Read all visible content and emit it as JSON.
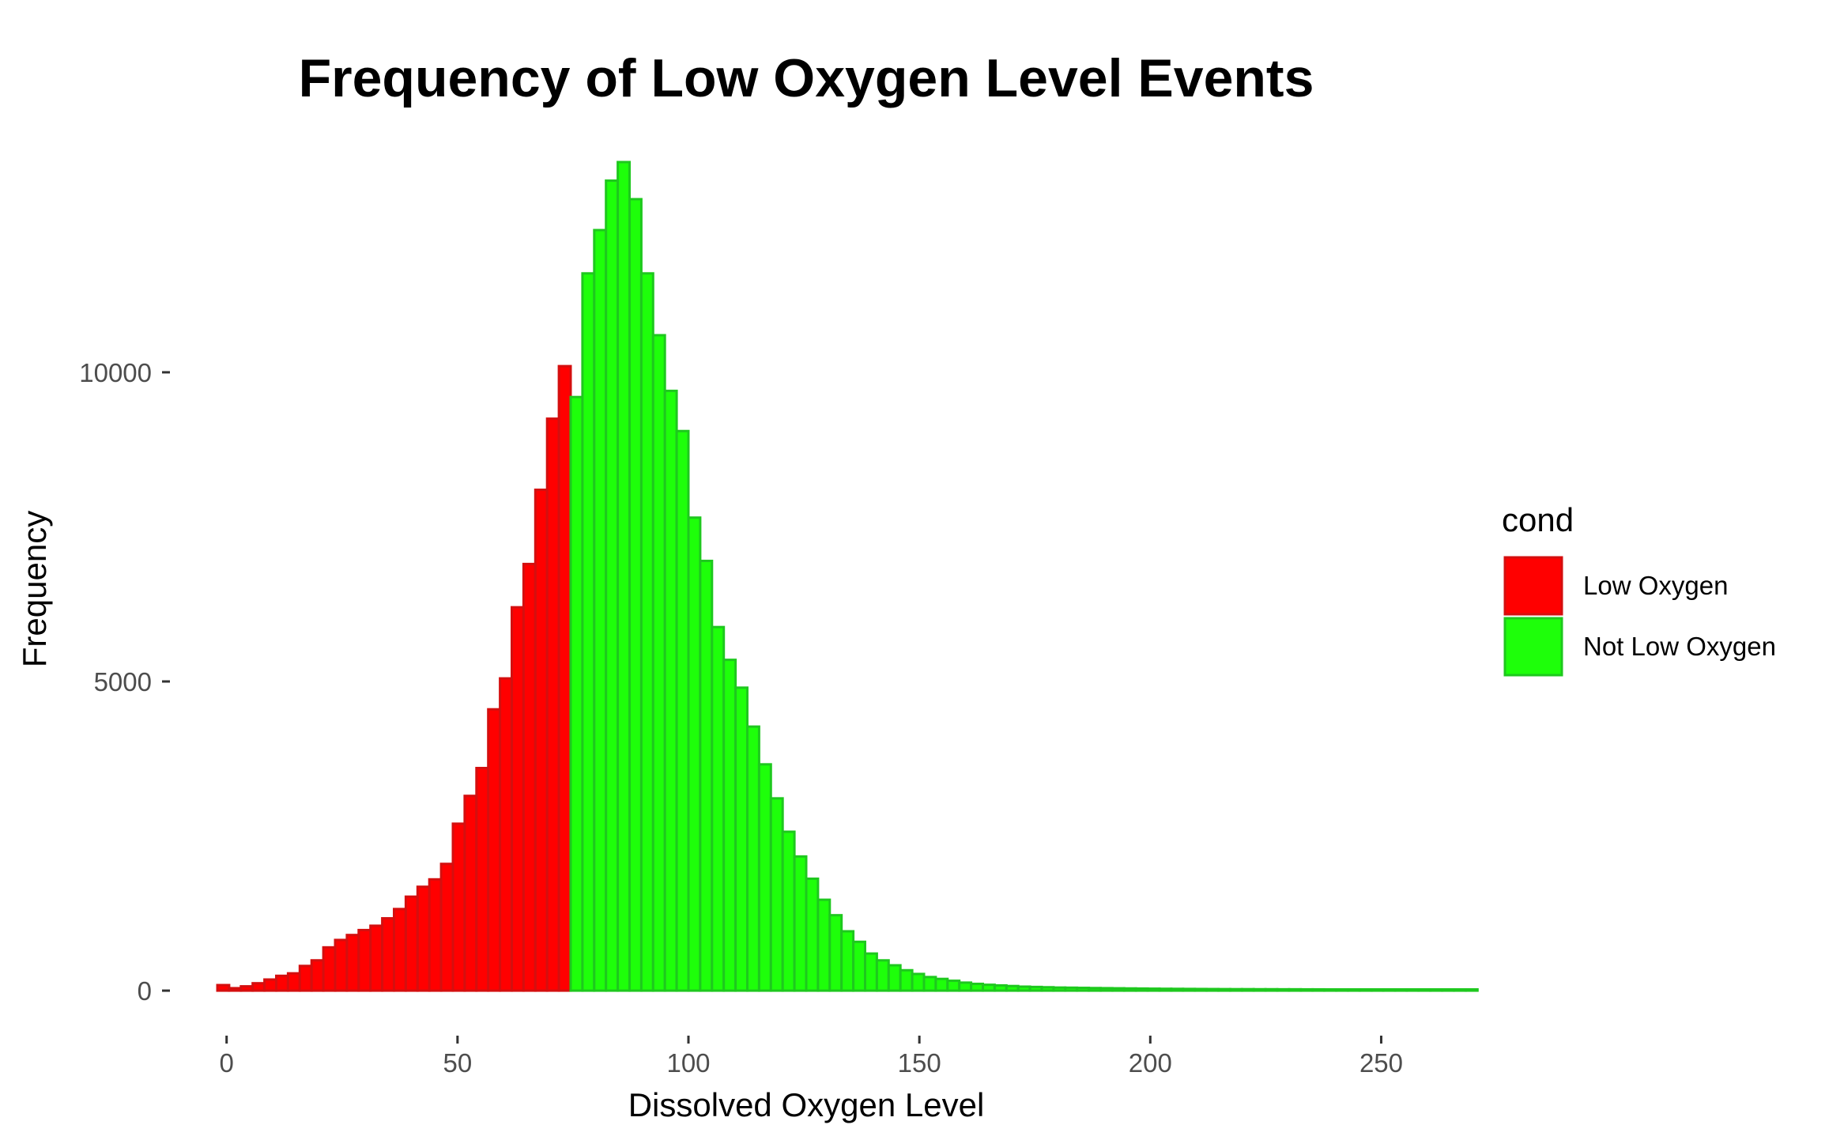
{
  "chart_data": {
    "type": "bar",
    "title": "Frequency of Low Oxygen Level Events",
    "xlabel": "Dissolved Oxygen Level",
    "ylabel": "Frequency",
    "xlim": [
      -2,
      253
    ],
    "ylim": [
      -600,
      13400
    ],
    "x_ticks": [
      0,
      50,
      100,
      150,
      200,
      250
    ],
    "x_tick_labels": [
      "0",
      "50",
      "100",
      "150",
      "200",
      "250"
    ],
    "y_ticks": [
      0,
      5000,
      10000
    ],
    "y_tick_labels": [
      "0",
      "5000",
      "10000"
    ],
    "bin_width": 2.55,
    "bin_start": -2,
    "grid": false,
    "legend_position": "right",
    "legend_title": "cond",
    "series": [
      {
        "name": "Low Oxygen",
        "fill": "#ff0000",
        "stroke": "#d40f0f",
        "values": [
          90,
          40,
          70,
          120,
          180,
          240,
          280,
          400,
          490,
          700,
          820,
          900,
          980,
          1050,
          1170,
          1320,
          1520,
          1680,
          1800,
          2050,
          2700,
          3150,
          3600,
          4550,
          5050,
          6200,
          6900,
          8100,
          9250,
          10100
        ]
      },
      {
        "name": "Not Low Oxygen",
        "fill": "#1eff0a",
        "stroke": "#1ec81e",
        "values": [
          9600,
          11600,
          12300,
          13100,
          13400,
          12800,
          11600,
          10600,
          9700,
          9050,
          7650,
          6950,
          5880,
          5350,
          4900,
          4270,
          3660,
          3110,
          2570,
          2170,
          1810,
          1470,
          1220,
          960,
          790,
          600,
          490,
          410,
          330,
          270,
          220,
          190,
          160,
          130,
          110,
          95,
          85,
          75,
          65,
          60,
          55,
          50,
          48,
          45,
          42,
          40,
          38,
          36,
          34,
          32,
          30,
          29,
          28,
          27,
          26,
          25,
          24,
          24,
          23,
          23,
          22,
          22,
          21,
          21,
          20,
          20,
          20,
          20,
          20,
          20,
          20,
          20,
          20,
          20,
          20,
          20,
          20
        ]
      }
    ]
  }
}
